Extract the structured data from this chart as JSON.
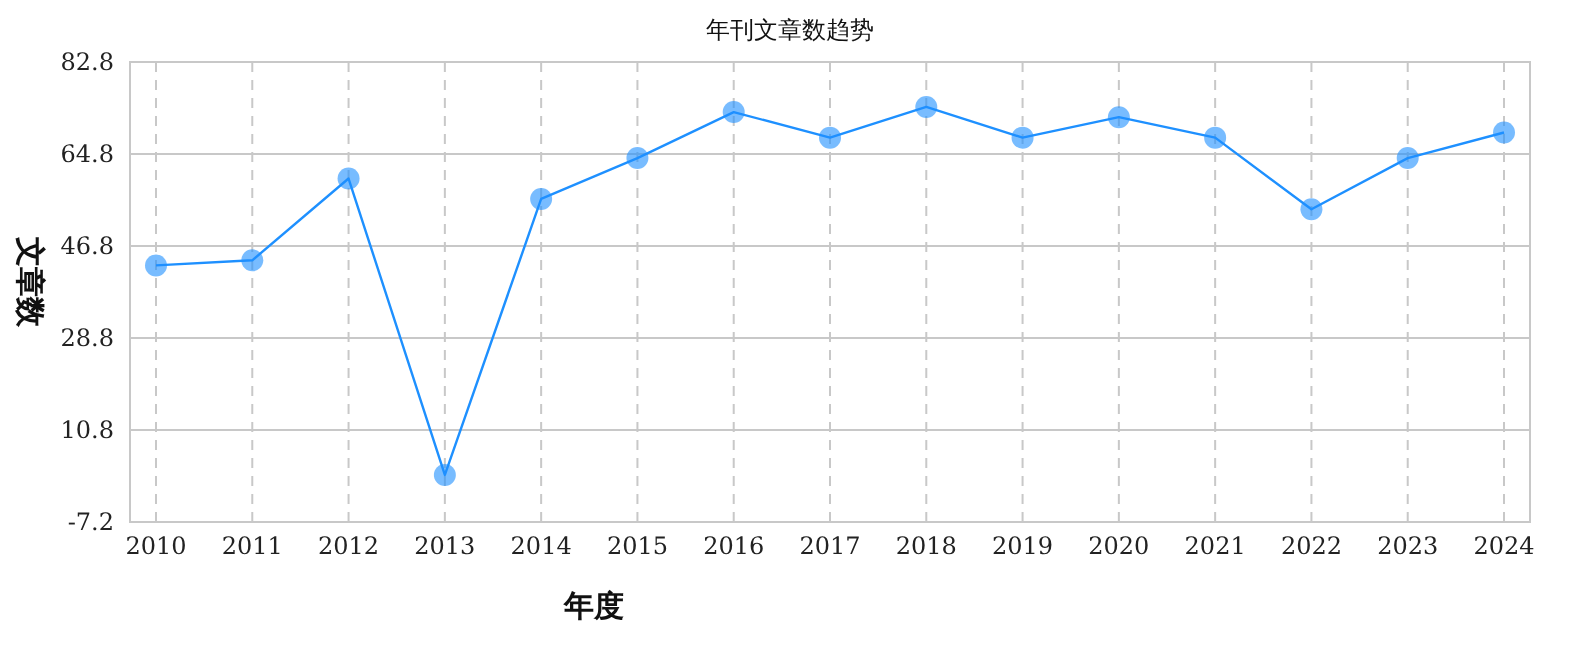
{
  "chart_data": {
    "type": "line",
    "title": "年刊文章数趋势",
    "xlabel": "年度",
    "ylabel": "文章数",
    "categories": [
      "2010",
      "2011",
      "2012",
      "2013",
      "2014",
      "2015",
      "2016",
      "2017",
      "2018",
      "2019",
      "2020",
      "2021",
      "2022",
      "2023",
      "2024"
    ],
    "series": [
      {
        "color": "#1e90ff",
        "values": [
          43,
          44,
          60,
          2,
          56,
          64,
          73,
          68,
          74,
          68,
          72,
          68,
          54,
          64,
          69
        ]
      }
    ],
    "ylim": [
      -7.2,
      82.8
    ],
    "yticks": [
      -7.2,
      10.8,
      28.8,
      46.8,
      64.8,
      82.8
    ],
    "grid": true,
    "marker": "circle",
    "line_style": "solid"
  }
}
